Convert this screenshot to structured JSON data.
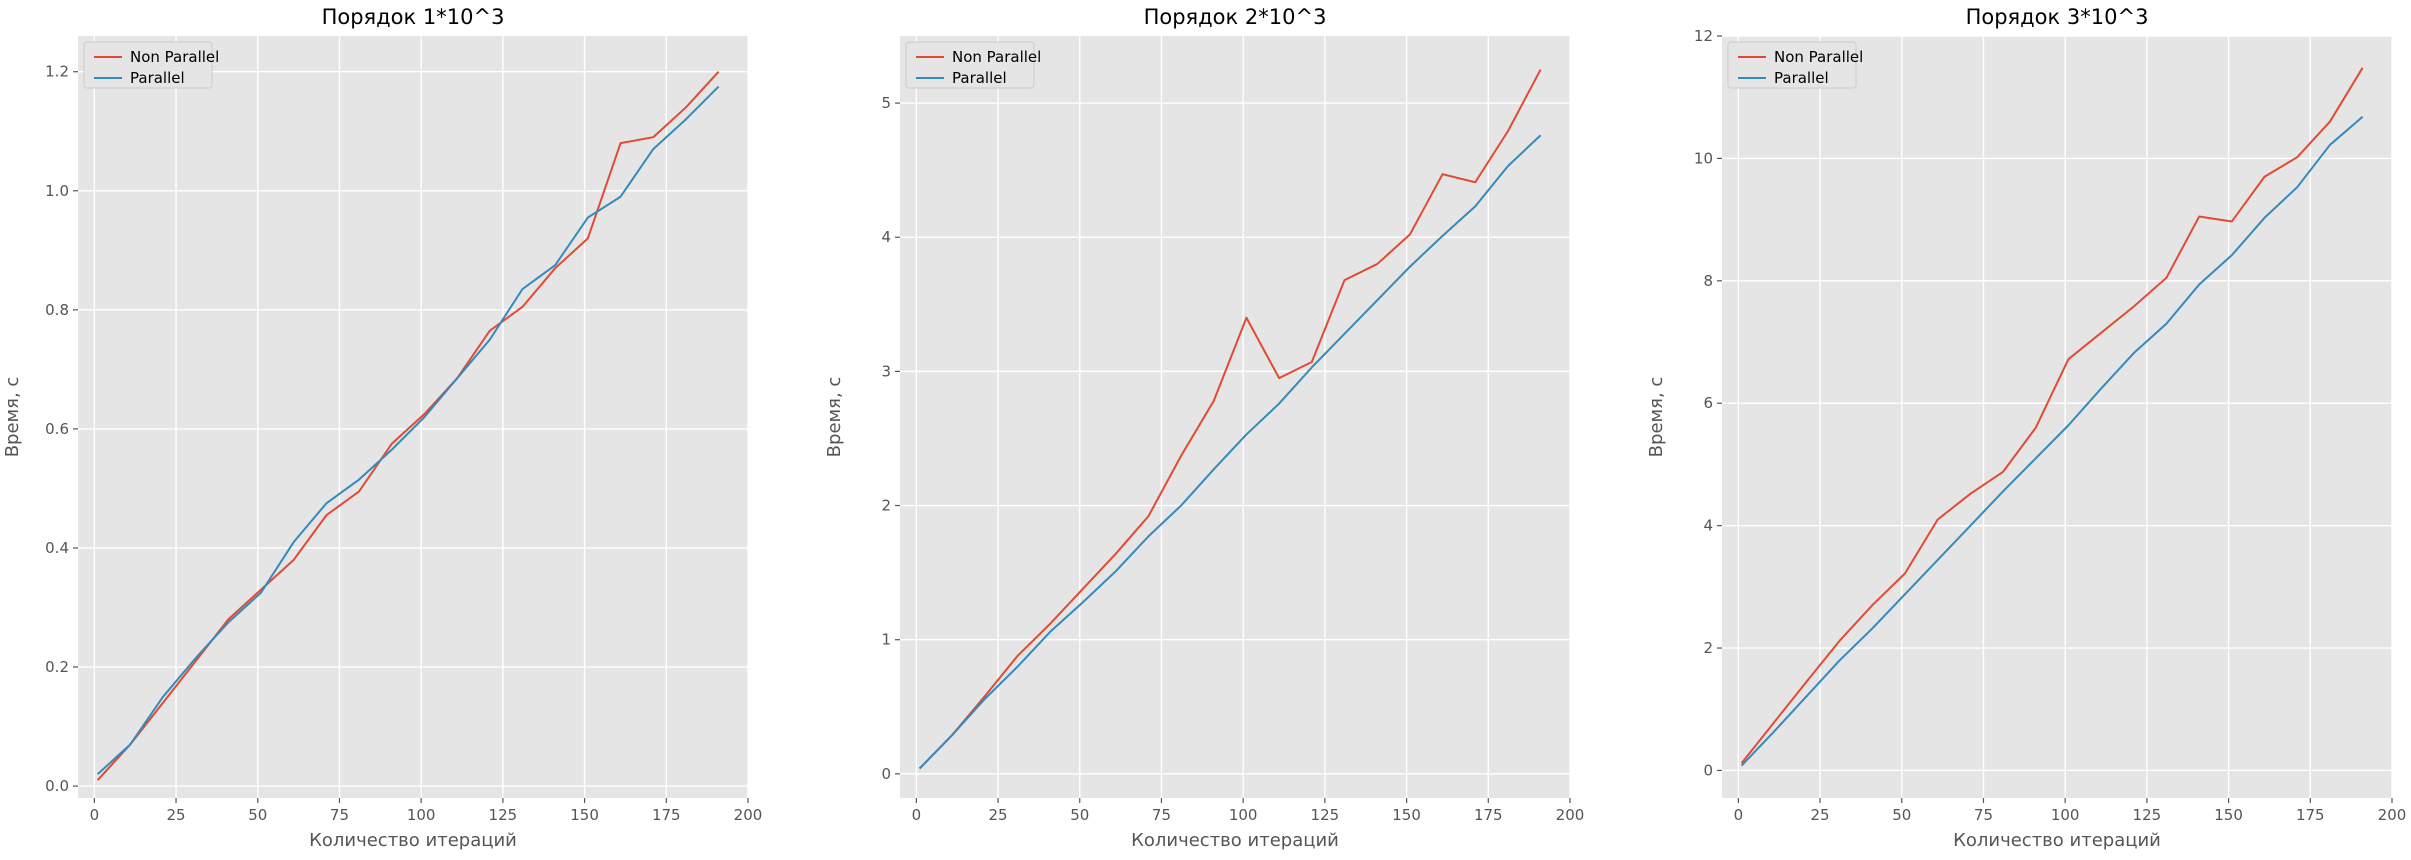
{
  "colors": {
    "non_parallel": "#e24a33",
    "parallel": "#348abd"
  },
  "chart_data": [
    {
      "type": "line",
      "title": "Порядок 1*10^3",
      "xlabel": "Количество итераций",
      "ylabel": "Время, с",
      "xlim": [
        -5,
        200
      ],
      "ylim": [
        -0.02,
        1.26
      ],
      "xticks": [
        0,
        25,
        50,
        75,
        100,
        125,
        150,
        175,
        200
      ],
      "yticks": [
        0.0,
        0.2,
        0.4,
        0.6,
        0.8,
        1.0,
        1.2
      ],
      "ytick_decimals": 1,
      "grid": true,
      "legend_position": "top-left",
      "x": [
        1,
        11,
        21,
        31,
        41,
        51,
        61,
        71,
        81,
        91,
        101,
        111,
        121,
        131,
        141,
        151,
        161,
        171,
        181,
        191
      ],
      "series": [
        {
          "name": "Non Parallel",
          "color": "#e24a33",
          "values": [
            0.01,
            0.07,
            0.14,
            0.21,
            0.28,
            0.33,
            0.38,
            0.455,
            0.495,
            0.575,
            0.625,
            0.685,
            0.765,
            0.805,
            0.87,
            0.92,
            1.08,
            1.09,
            1.14,
            1.2
          ]
        },
        {
          "name": "Parallel",
          "color": "#348abd",
          "values": [
            0.02,
            0.07,
            0.15,
            0.215,
            0.275,
            0.325,
            0.41,
            0.475,
            0.515,
            0.565,
            0.62,
            0.685,
            0.75,
            0.835,
            0.875,
            0.955,
            0.99,
            1.07,
            1.12,
            1.175
          ]
        }
      ]
    },
    {
      "type": "line",
      "title": "Порядок 2*10^3",
      "xlabel": "Количество итераций",
      "ylabel": "Время, с",
      "xlim": [
        -5,
        200
      ],
      "ylim": [
        -0.18,
        5.5
      ],
      "xticks": [
        0,
        25,
        50,
        75,
        100,
        125,
        150,
        175,
        200
      ],
      "yticks": [
        0,
        1,
        2,
        3,
        4,
        5
      ],
      "ytick_decimals": 0,
      "grid": true,
      "legend_position": "top-left",
      "x": [
        1,
        11,
        21,
        31,
        41,
        51,
        61,
        71,
        81,
        91,
        101,
        111,
        121,
        131,
        141,
        151,
        161,
        171,
        181,
        191
      ],
      "series": [
        {
          "name": "Non Parallel",
          "color": "#e24a33",
          "values": [
            0.04,
            0.29,
            0.58,
            0.88,
            1.12,
            1.38,
            1.64,
            1.92,
            2.37,
            2.78,
            3.4,
            2.95,
            3.07,
            3.68,
            3.8,
            4.02,
            4.47,
            4.41,
            4.79,
            5.25
          ]
        },
        {
          "name": "Parallel",
          "color": "#348abd",
          "values": [
            0.04,
            0.29,
            0.56,
            0.8,
            1.06,
            1.28,
            1.51,
            1.77,
            2.0,
            2.27,
            2.53,
            2.76,
            3.03,
            3.28,
            3.53,
            3.78,
            4.01,
            4.23,
            4.53,
            4.76
          ]
        }
      ]
    },
    {
      "type": "line",
      "title": "Порядок 3*10^3",
      "xlabel": "Количество итераций",
      "ylabel": "Время, с",
      "xlim": [
        -5,
        200
      ],
      "ylim": [
        -0.45,
        12.0
      ],
      "xticks": [
        0,
        25,
        50,
        75,
        100,
        125,
        150,
        175,
        200
      ],
      "yticks": [
        0,
        2,
        4,
        6,
        8,
        10,
        12
      ],
      "ytick_decimals": 0,
      "grid": true,
      "legend_position": "top-left",
      "x": [
        1,
        11,
        21,
        31,
        41,
        51,
        61,
        71,
        81,
        91,
        101,
        111,
        121,
        131,
        141,
        151,
        161,
        171,
        181,
        191
      ],
      "series": [
        {
          "name": "Non Parallel",
          "color": "#e24a33",
          "values": [
            0.12,
            0.79,
            1.46,
            2.12,
            2.7,
            3.22,
            4.1,
            4.52,
            4.88,
            5.6,
            6.72,
            7.15,
            7.58,
            8.05,
            9.05,
            8.97,
            9.7,
            10.02,
            10.6,
            11.48
          ]
        },
        {
          "name": "Parallel",
          "color": "#348abd",
          "values": [
            0.08,
            0.64,
            1.22,
            1.8,
            2.32,
            2.88,
            3.44,
            4.0,
            4.56,
            5.1,
            5.64,
            6.24,
            6.82,
            7.3,
            7.94,
            8.42,
            9.03,
            9.53,
            10.22,
            10.68
          ]
        }
      ]
    }
  ]
}
